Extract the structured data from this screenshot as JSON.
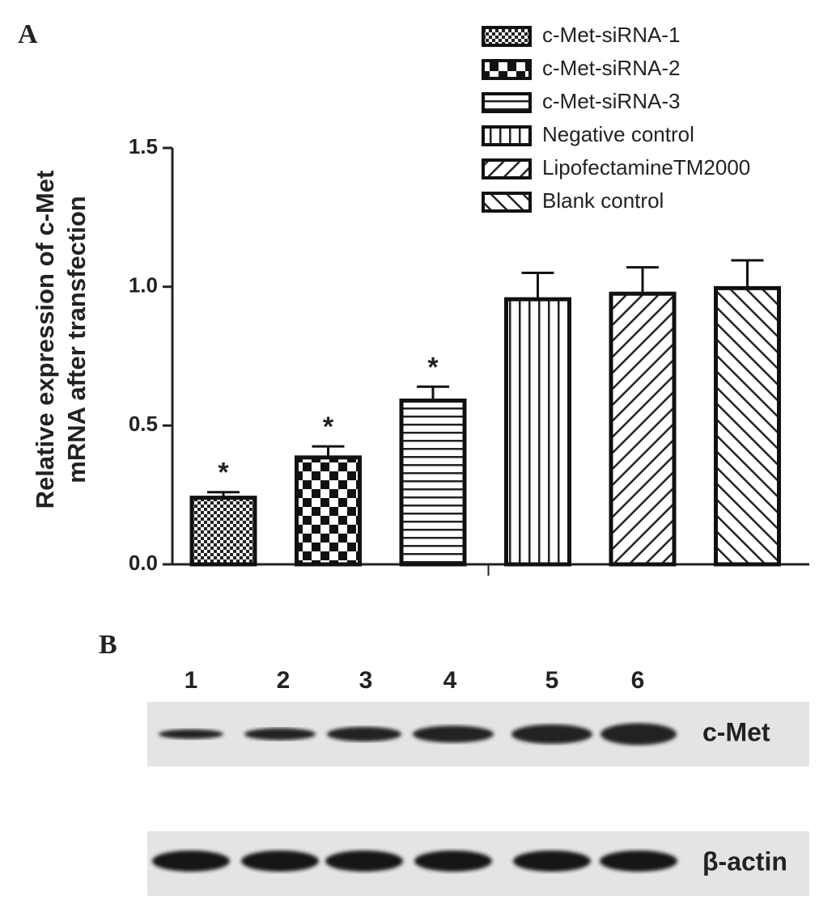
{
  "chart_data": {
    "type": "bar",
    "panel_label": "A",
    "ylabel": [
      "Relative expression of c-Met",
      "mRNA after transfection"
    ],
    "categories": [
      "c-Met-siRNA-1",
      "c-Met-siRNA-2",
      "c-Met-siRNA-3",
      "Negative control",
      "LipofectamineTM2000",
      "Blank control"
    ],
    "values": [
      0.24,
      0.385,
      0.59,
      0.955,
      0.975,
      0.995
    ],
    "errors": [
      0.02,
      0.04,
      0.05,
      0.095,
      0.095,
      0.1
    ],
    "annotations": [
      "*",
      "*",
      "*"
    ],
    "patterns": [
      "dots",
      "checker",
      "hlines",
      "vlines",
      "diag-right",
      "diag-left"
    ],
    "color": "#111111",
    "ylim": [
      0,
      1.5
    ],
    "yticks": [
      {
        "value": 0,
        "label": "0.0"
      },
      0.5,
      {
        "value": 1,
        "label": "1.0"
      },
      1.5
    ],
    "legend": "top-right",
    "grid": false
  },
  "blot": {
    "panel_label": "B",
    "lanes": [
      "1",
      "2",
      "3",
      "4",
      "5",
      "6"
    ],
    "rows": [
      "c-Met",
      "β-actin"
    ]
  }
}
